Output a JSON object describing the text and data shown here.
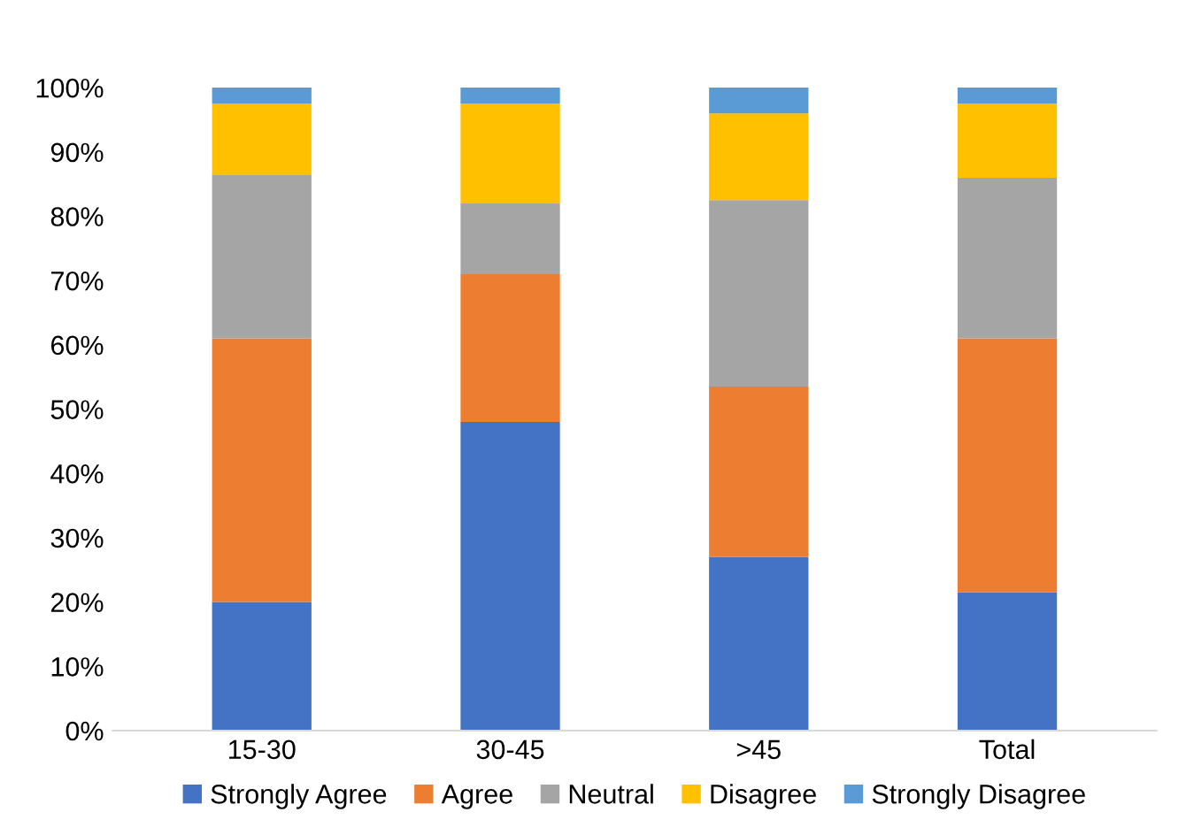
{
  "chart_data": {
    "type": "bar",
    "stacked": true,
    "categories": [
      "15-30",
      "30-45",
      ">45",
      "Total"
    ],
    "series": [
      {
        "name": "Strongly Agree",
        "color": "#4472c4",
        "values": [
          20,
          48,
          27,
          21.5
        ]
      },
      {
        "name": "Agree",
        "color": "#ed7d31",
        "values": [
          41,
          23,
          26.5,
          39.5
        ]
      },
      {
        "name": "Neutral",
        "color": "#a5a5a5",
        "values": [
          25.5,
          11,
          29,
          25
        ]
      },
      {
        "name": "Disagree",
        "color": "#ffc000",
        "values": [
          11,
          15.5,
          13.5,
          11.5
        ]
      },
      {
        "name": "Strongly Disagree",
        "color": "#5b9bd5",
        "values": [
          2.5,
          2.5,
          4,
          2.5
        ]
      }
    ],
    "ylim": [
      0,
      100
    ],
    "yticks": [
      {
        "value": 0,
        "label": "0%"
      },
      {
        "value": 10,
        "label": "10%"
      },
      {
        "value": 20,
        "label": "20%"
      },
      {
        "value": 30,
        "label": "30%"
      },
      {
        "value": 40,
        "label": "40%"
      },
      {
        "value": 50,
        "label": "50%"
      },
      {
        "value": 60,
        "label": "60%"
      },
      {
        "value": 70,
        "label": "70%"
      },
      {
        "value": 80,
        "label": "80%"
      },
      {
        "value": 90,
        "label": "90%"
      },
      {
        "value": 100,
        "label": "100%"
      }
    ],
    "grid": false,
    "legend": "bottom"
  }
}
